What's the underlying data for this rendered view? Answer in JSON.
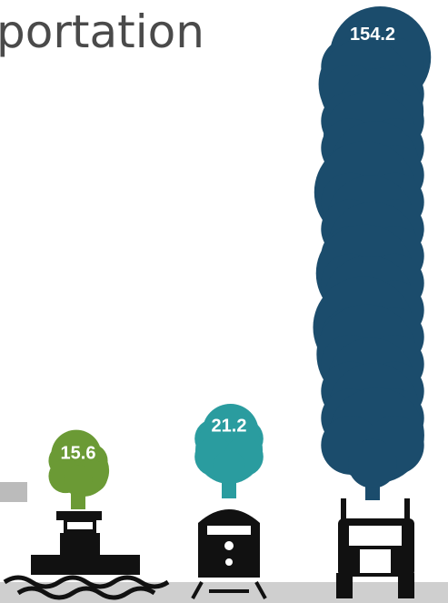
{
  "chart_data": {
    "type": "smoke",
    "title": "portation",
    "categories": [
      null,
      null,
      null
    ],
    "values": [
      15.6,
      21.2,
      154.2
    ],
    "colors": [
      "#6b9a35",
      "#2a9c9f",
      "#1b4c6c"
    ]
  }
}
